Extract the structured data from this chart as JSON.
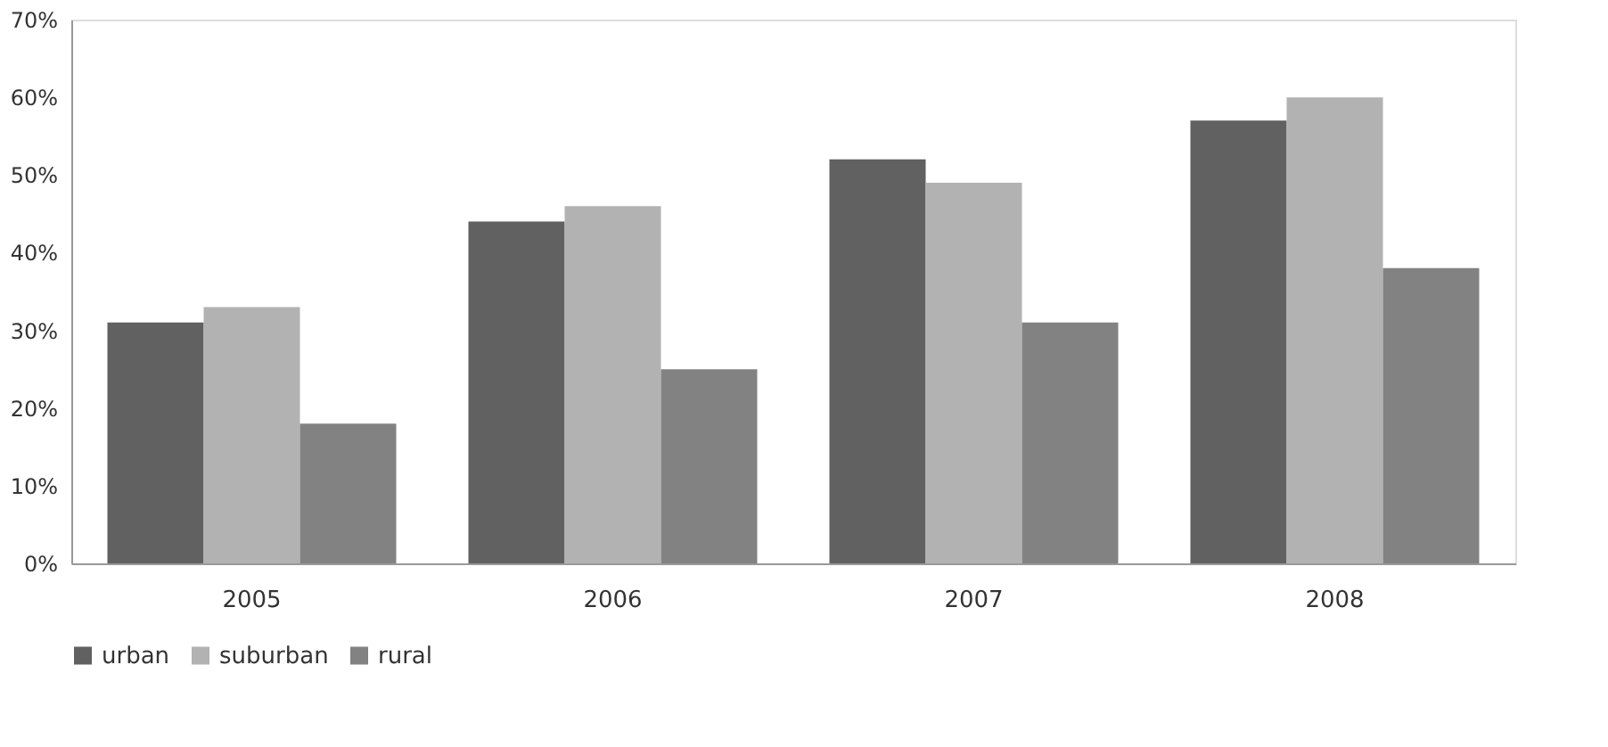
{
  "chart_data": {
    "type": "bar",
    "categories": [
      "2005",
      "2006",
      "2007",
      "2008"
    ],
    "series": [
      {
        "name": "urban",
        "color": "#616161",
        "values": [
          31,
          44,
          52,
          57
        ]
      },
      {
        "name": "suburban",
        "color": "#b2b2b2",
        "values": [
          33,
          46,
          49,
          60
        ]
      },
      {
        "name": "rural",
        "color": "#828282",
        "values": [
          18,
          25,
          31,
          38
        ]
      }
    ],
    "ylim": [
      0,
      70
    ],
    "yticks": [
      {
        "value": 0,
        "label": "0%"
      },
      {
        "value": 10,
        "label": "10%"
      },
      {
        "value": 20,
        "label": "20%"
      },
      {
        "value": 30,
        "label": "30%"
      },
      {
        "value": 40,
        "label": "40%"
      },
      {
        "value": 50,
        "label": "50%"
      },
      {
        "value": 60,
        "label": "60%"
      },
      {
        "value": 70,
        "label": "70%"
      }
    ],
    "grid": false,
    "legend": "bottom"
  }
}
